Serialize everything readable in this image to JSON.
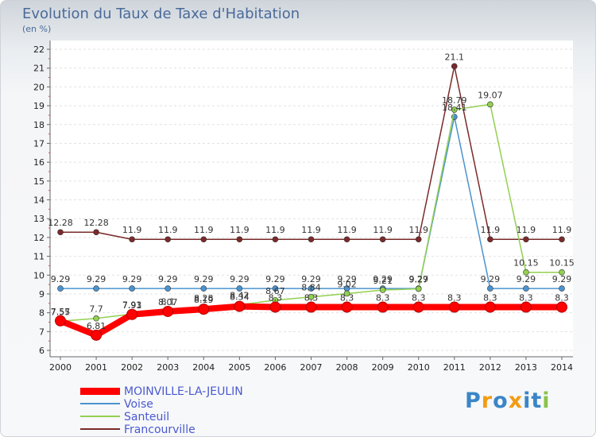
{
  "title": "Evolution du Taux de Taxe d'Habitation",
  "subtitle": "(en %)",
  "logo": "Proxiti",
  "chart_data": {
    "type": "line",
    "x": [
      "2000",
      "2001",
      "2002",
      "2003",
      "2004",
      "2005",
      "2006",
      "2007",
      "2008",
      "2009",
      "2010",
      "2011",
      "2012",
      "2013",
      "2014"
    ],
    "yticks": [
      "6",
      "7",
      "8",
      "9",
      "10",
      "11",
      "12",
      "13",
      "14",
      "15",
      "16",
      "17",
      "18",
      "19",
      "20",
      "21",
      "22"
    ],
    "ylim": [
      6,
      22
    ],
    "series": [
      {
        "name": "MOINVILLE-LA-JEULIN",
        "color": "#ff0000",
        "values": [
          7.57,
          6.81,
          7.91,
          8.07,
          8.19,
          8.34,
          8.3,
          8.3,
          8.3,
          8.3,
          8.3,
          8.3,
          8.3,
          8.3,
          8.3
        ],
        "labels": [
          "7.57",
          "6.81",
          "7.91",
          "8.07",
          "8.19",
          "8.34",
          "8.3",
          "8.3",
          "8.3",
          "8.3",
          "8.3",
          "8.3",
          "8.3",
          "8.3",
          "8.3"
        ]
      },
      {
        "name": "Voise",
        "color": "#4b93cf",
        "values": [
          9.29,
          9.29,
          9.29,
          9.29,
          9.29,
          9.29,
          9.29,
          9.29,
          9.29,
          9.29,
          9.29,
          18.41,
          9.29,
          9.29,
          9.29
        ],
        "labels": [
          "9.29",
          "9.29",
          "9.29",
          "9.29",
          "9.29",
          "9.29",
          "9.29",
          "9.29",
          "9.29",
          "9.29",
          "9.29",
          "18.41",
          "9.29",
          "9.29",
          "9.29"
        ]
      },
      {
        "name": "Santeuil",
        "color": "#92d050",
        "values": [
          7.55,
          7.7,
          7.93,
          8.1,
          8.28,
          8.42,
          8.67,
          8.84,
          9.02,
          9.21,
          9.27,
          18.79,
          19.07,
          10.15,
          10.15
        ],
        "labels": [
          "7.55",
          "7.7",
          "7.93",
          "8.1",
          "8.28",
          "8.42",
          "8.67",
          "8.84",
          "9.02",
          "9.21",
          "9.27",
          "18.79",
          "19.07",
          "10.15",
          "10.15"
        ]
      },
      {
        "name": "Francourville",
        "color": "#7a2a2a",
        "values": [
          12.28,
          12.28,
          11.9,
          11.9,
          11.9,
          11.9,
          11.9,
          11.9,
          11.9,
          11.9,
          11.9,
          21.1,
          11.9,
          11.9,
          11.9
        ],
        "labels": [
          "12.28",
          "12.28",
          "11.9",
          "11.9",
          "11.9",
          "11.9",
          "11.9",
          "11.9",
          "11.9",
          "11.9",
          "11.9",
          "21.1",
          "11.9",
          "11.9",
          "11.9"
        ]
      }
    ]
  }
}
